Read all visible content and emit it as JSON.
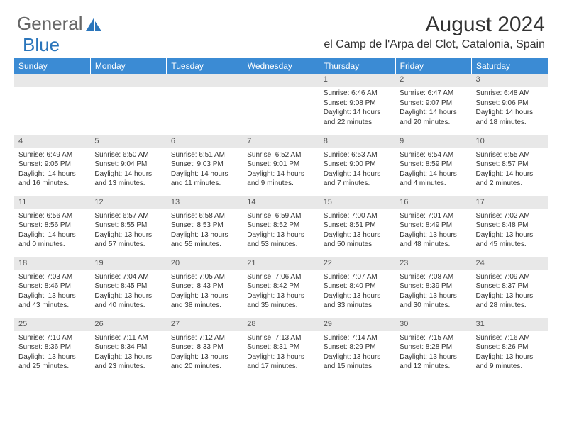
{
  "logo": {
    "text1": "General",
    "text2": "Blue"
  },
  "title": "August 2024",
  "location": "el Camp de l'Arpa del Clot, Catalonia, Spain",
  "colors": {
    "header_bg": "#3b8bd4",
    "header_text": "#ffffff",
    "daynum_bg": "#e8e8e8",
    "border": "#3b8bd4",
    "logo_blue": "#2a75bb",
    "body_text": "#333333"
  },
  "weekdays": [
    "Sunday",
    "Monday",
    "Tuesday",
    "Wednesday",
    "Thursday",
    "Friday",
    "Saturday"
  ],
  "weeks": [
    [
      {
        "n": "",
        "lines": []
      },
      {
        "n": "",
        "lines": []
      },
      {
        "n": "",
        "lines": []
      },
      {
        "n": "",
        "lines": []
      },
      {
        "n": "1",
        "lines": [
          "Sunrise: 6:46 AM",
          "Sunset: 9:08 PM",
          "Daylight: 14 hours",
          "and 22 minutes."
        ]
      },
      {
        "n": "2",
        "lines": [
          "Sunrise: 6:47 AM",
          "Sunset: 9:07 PM",
          "Daylight: 14 hours",
          "and 20 minutes."
        ]
      },
      {
        "n": "3",
        "lines": [
          "Sunrise: 6:48 AM",
          "Sunset: 9:06 PM",
          "Daylight: 14 hours",
          "and 18 minutes."
        ]
      }
    ],
    [
      {
        "n": "4",
        "lines": [
          "Sunrise: 6:49 AM",
          "Sunset: 9:05 PM",
          "Daylight: 14 hours",
          "and 16 minutes."
        ]
      },
      {
        "n": "5",
        "lines": [
          "Sunrise: 6:50 AM",
          "Sunset: 9:04 PM",
          "Daylight: 14 hours",
          "and 13 minutes."
        ]
      },
      {
        "n": "6",
        "lines": [
          "Sunrise: 6:51 AM",
          "Sunset: 9:03 PM",
          "Daylight: 14 hours",
          "and 11 minutes."
        ]
      },
      {
        "n": "7",
        "lines": [
          "Sunrise: 6:52 AM",
          "Sunset: 9:01 PM",
          "Daylight: 14 hours",
          "and 9 minutes."
        ]
      },
      {
        "n": "8",
        "lines": [
          "Sunrise: 6:53 AM",
          "Sunset: 9:00 PM",
          "Daylight: 14 hours",
          "and 7 minutes."
        ]
      },
      {
        "n": "9",
        "lines": [
          "Sunrise: 6:54 AM",
          "Sunset: 8:59 PM",
          "Daylight: 14 hours",
          "and 4 minutes."
        ]
      },
      {
        "n": "10",
        "lines": [
          "Sunrise: 6:55 AM",
          "Sunset: 8:57 PM",
          "Daylight: 14 hours",
          "and 2 minutes."
        ]
      }
    ],
    [
      {
        "n": "11",
        "lines": [
          "Sunrise: 6:56 AM",
          "Sunset: 8:56 PM",
          "Daylight: 14 hours",
          "and 0 minutes."
        ]
      },
      {
        "n": "12",
        "lines": [
          "Sunrise: 6:57 AM",
          "Sunset: 8:55 PM",
          "Daylight: 13 hours",
          "and 57 minutes."
        ]
      },
      {
        "n": "13",
        "lines": [
          "Sunrise: 6:58 AM",
          "Sunset: 8:53 PM",
          "Daylight: 13 hours",
          "and 55 minutes."
        ]
      },
      {
        "n": "14",
        "lines": [
          "Sunrise: 6:59 AM",
          "Sunset: 8:52 PM",
          "Daylight: 13 hours",
          "and 53 minutes."
        ]
      },
      {
        "n": "15",
        "lines": [
          "Sunrise: 7:00 AM",
          "Sunset: 8:51 PM",
          "Daylight: 13 hours",
          "and 50 minutes."
        ]
      },
      {
        "n": "16",
        "lines": [
          "Sunrise: 7:01 AM",
          "Sunset: 8:49 PM",
          "Daylight: 13 hours",
          "and 48 minutes."
        ]
      },
      {
        "n": "17",
        "lines": [
          "Sunrise: 7:02 AM",
          "Sunset: 8:48 PM",
          "Daylight: 13 hours",
          "and 45 minutes."
        ]
      }
    ],
    [
      {
        "n": "18",
        "lines": [
          "Sunrise: 7:03 AM",
          "Sunset: 8:46 PM",
          "Daylight: 13 hours",
          "and 43 minutes."
        ]
      },
      {
        "n": "19",
        "lines": [
          "Sunrise: 7:04 AM",
          "Sunset: 8:45 PM",
          "Daylight: 13 hours",
          "and 40 minutes."
        ]
      },
      {
        "n": "20",
        "lines": [
          "Sunrise: 7:05 AM",
          "Sunset: 8:43 PM",
          "Daylight: 13 hours",
          "and 38 minutes."
        ]
      },
      {
        "n": "21",
        "lines": [
          "Sunrise: 7:06 AM",
          "Sunset: 8:42 PM",
          "Daylight: 13 hours",
          "and 35 minutes."
        ]
      },
      {
        "n": "22",
        "lines": [
          "Sunrise: 7:07 AM",
          "Sunset: 8:40 PM",
          "Daylight: 13 hours",
          "and 33 minutes."
        ]
      },
      {
        "n": "23",
        "lines": [
          "Sunrise: 7:08 AM",
          "Sunset: 8:39 PM",
          "Daylight: 13 hours",
          "and 30 minutes."
        ]
      },
      {
        "n": "24",
        "lines": [
          "Sunrise: 7:09 AM",
          "Sunset: 8:37 PM",
          "Daylight: 13 hours",
          "and 28 minutes."
        ]
      }
    ],
    [
      {
        "n": "25",
        "lines": [
          "Sunrise: 7:10 AM",
          "Sunset: 8:36 PM",
          "Daylight: 13 hours",
          "and 25 minutes."
        ]
      },
      {
        "n": "26",
        "lines": [
          "Sunrise: 7:11 AM",
          "Sunset: 8:34 PM",
          "Daylight: 13 hours",
          "and 23 minutes."
        ]
      },
      {
        "n": "27",
        "lines": [
          "Sunrise: 7:12 AM",
          "Sunset: 8:33 PM",
          "Daylight: 13 hours",
          "and 20 minutes."
        ]
      },
      {
        "n": "28",
        "lines": [
          "Sunrise: 7:13 AM",
          "Sunset: 8:31 PM",
          "Daylight: 13 hours",
          "and 17 minutes."
        ]
      },
      {
        "n": "29",
        "lines": [
          "Sunrise: 7:14 AM",
          "Sunset: 8:29 PM",
          "Daylight: 13 hours",
          "and 15 minutes."
        ]
      },
      {
        "n": "30",
        "lines": [
          "Sunrise: 7:15 AM",
          "Sunset: 8:28 PM",
          "Daylight: 13 hours",
          "and 12 minutes."
        ]
      },
      {
        "n": "31",
        "lines": [
          "Sunrise: 7:16 AM",
          "Sunset: 8:26 PM",
          "Daylight: 13 hours",
          "and 9 minutes."
        ]
      }
    ]
  ]
}
